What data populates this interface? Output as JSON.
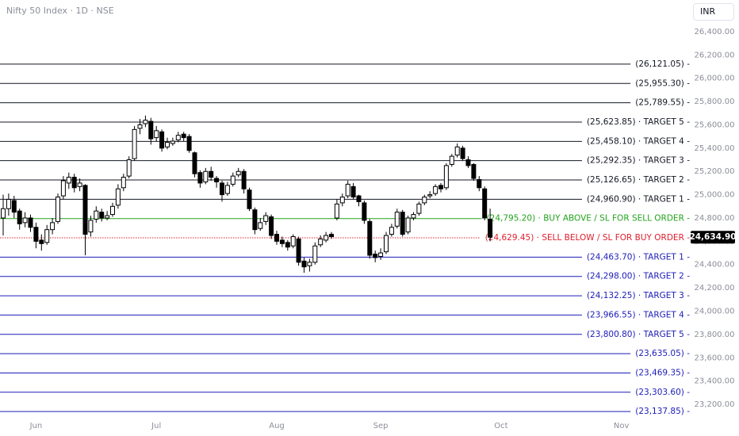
{
  "chart_data": {
    "type": "candlestick",
    "title": "Nifty 50 Index · 1D · NSE",
    "currency": "INR",
    "categories": [
      null,
      null,
      null,
      null,
      null,
      null,
      "Jun",
      null,
      null,
      null,
      null,
      null,
      null,
      null,
      null,
      null,
      null,
      null,
      null,
      null,
      null,
      null,
      null,
      null,
      null,
      null,
      null,
      null,
      "Jul",
      null,
      null,
      null,
      null,
      null,
      null,
      null,
      null,
      null,
      null,
      null,
      null,
      null,
      null,
      null,
      null,
      null,
      null,
      null,
      null,
      null,
      "Aug",
      null,
      null,
      null,
      null,
      null,
      null,
      null,
      null,
      null,
      null,
      null,
      null,
      null,
      null,
      null,
      null,
      null,
      null,
      "Sep",
      null,
      null,
      null,
      null,
      null,
      null,
      null,
      null,
      null,
      null,
      null,
      null,
      null,
      null,
      null,
      null,
      null,
      null,
      null,
      null,
      null,
      "Oct",
      null,
      null,
      null,
      null,
      null,
      null,
      null,
      null,
      null,
      null,
      null,
      null,
      null,
      null,
      null,
      null,
      null,
      null,
      null,
      null,
      null,
      "Nov",
      null
    ],
    "open": [
      24800,
      24880,
      24950,
      24860,
      24760,
      24800,
      24720,
      24610,
      24590,
      24700,
      24770,
      24990,
      25100,
      25150,
      25070,
      25080,
      24680,
      24790,
      24850,
      24800,
      24830,
      24910,
      25060,
      25160,
      25310,
      25570,
      25610,
      25630,
      25490,
      25540,
      25410,
      25440,
      25470,
      25520,
      25500,
      25360,
      25190,
      25110,
      25200,
      25140,
      25100,
      25010,
      25090,
      25170,
      25200,
      25040,
      24870,
      24710,
      24770,
      24810,
      24660,
      24610,
      24590,
      24560,
      24620,
      24430,
      24390,
      24420,
      24570,
      24610,
      24660,
      24800,
      24930,
      24990,
      25070,
      24990,
      24930,
      24770,
      24490,
      24470,
      24510,
      24660,
      24730,
      24850,
      24680,
      24800,
      24840,
      24930,
      24990,
      25010,
      25080,
      25060,
      25260,
      25340,
      25400,
      25300,
      25260,
      25130,
      25050,
      24790,
      null,
      null,
      null,
      null,
      null,
      null,
      null,
      null,
      null,
      null,
      null,
      null,
      null,
      null,
      null,
      null,
      null,
      null,
      null,
      null,
      null,
      null,
      null,
      null,
      null
    ],
    "high": [
      25000,
      25010,
      24990,
      24880,
      24850,
      24830,
      24760,
      24660,
      24740,
      24800,
      25010,
      25160,
      25190,
      25180,
      25140,
      25090,
      24820,
      24900,
      24880,
      24860,
      24930,
      25090,
      25180,
      25330,
      25590,
      25650,
      25680,
      25660,
      25590,
      25560,
      25490,
      25490,
      25540,
      25540,
      25520,
      25370,
      25210,
      25230,
      25240,
      25160,
      25120,
      25110,
      25190,
      25230,
      25220,
      25060,
      24890,
      24800,
      24850,
      24830,
      24690,
      24640,
      24610,
      24660,
      24640,
      24460,
      24450,
      24590,
      24650,
      24680,
      24680,
      24960,
      25010,
      25120,
      25100,
      25000,
      24950,
      24790,
      24520,
      24540,
      24680,
      24750,
      24880,
      24870,
      24820,
      24850,
      24940,
      25000,
      25030,
      25090,
      25100,
      25270,
      25350,
      25440,
      25420,
      25330,
      25270,
      25160,
      25070,
      24880,
      null,
      null,
      null,
      null,
      null,
      null,
      null,
      null,
      null,
      null,
      null,
      null,
      null,
      null,
      null,
      null,
      null,
      null,
      null,
      null,
      null,
      null,
      null,
      null,
      null
    ],
    "low": [
      24650,
      24820,
      24800,
      24700,
      24720,
      24680,
      24540,
      24520,
      24570,
      24660,
      24750,
      24960,
      25050,
      25020,
      25030,
      24480,
      24640,
      24760,
      24770,
      24780,
      24810,
      24880,
      25030,
      25140,
      25290,
      25520,
      25580,
      25430,
      25460,
      25370,
      25390,
      25420,
      25450,
      25460,
      25360,
      25150,
      25060,
      25090,
      25120,
      25060,
      24940,
      24990,
      25070,
      25150,
      25010,
      24860,
      24660,
      24690,
      24740,
      24620,
      24570,
      24550,
      24520,
      24540,
      24390,
      24330,
      24340,
      24400,
      24550,
      24590,
      24620,
      24780,
      24900,
      24970,
      24960,
      24900,
      24750,
      24450,
      24420,
      24440,
      24490,
      24640,
      24710,
      24640,
      24660,
      24780,
      24820,
      24910,
      24970,
      24990,
      25020,
      25040,
      25240,
      25320,
      25290,
      25230,
      25120,
      25030,
      24780,
      24600,
      null,
      null,
      null,
      null,
      null,
      null,
      null,
      null,
      null,
      null,
      null,
      null,
      null,
      null,
      null,
      null,
      null,
      null,
      null,
      null,
      null,
      null,
      null,
      null,
      null
    ],
    "close": [
      24880,
      24960,
      24850,
      24750,
      24800,
      24720,
      24600,
      24580,
      24700,
      24760,
      24980,
      25120,
      25150,
      25060,
      25100,
      24660,
      24780,
      24860,
      24800,
      24820,
      24900,
      25050,
      25150,
      25300,
      25560,
      25600,
      25640,
      25480,
      25550,
      25400,
      25450,
      25460,
      25510,
      25490,
      25380,
      25180,
      25100,
      25200,
      25150,
      25110,
      25000,
      25080,
      25160,
      25200,
      25050,
      24880,
      24700,
      24760,
      24820,
      24650,
      24600,
      24580,
      24550,
      24640,
      24420,
      24380,
      24420,
      24560,
      24620,
      24650,
      24640,
      24920,
      24980,
      25090,
      24980,
      24940,
      24780,
      24480,
      24460,
      24500,
      24650,
      24720,
      24850,
      24660,
      24800,
      24830,
      24920,
      24980,
      25000,
      25070,
      25050,
      25250,
      25330,
      25410,
      25310,
      25250,
      25140,
      25060,
      24800,
      24634.9,
      null,
      null,
      null,
      null,
      null,
      null,
      null,
      null,
      null,
      null,
      null,
      null,
      null,
      null,
      null,
      null,
      null,
      null,
      null,
      null,
      null,
      null,
      null,
      null,
      null
    ],
    "up_color": "#ffffff",
    "down_color": "#000000",
    "border_color": "#000000",
    "ylim": [
      23064,
      26672
    ],
    "yticks": [
      {
        "value": 23200,
        "label": "23,200.00"
      },
      {
        "value": 23400,
        "label": "23,400.00"
      },
      {
        "value": 23600,
        "label": "23,600.00"
      },
      {
        "value": 23800,
        "label": "23,800.00"
      },
      {
        "value": 24000,
        "label": "24,000.00"
      },
      {
        "value": 24200,
        "label": "24,200.00"
      },
      {
        "value": 24400,
        "label": "24,400.00"
      },
      {
        "value": 24600,
        "label": "24,600.00"
      },
      {
        "value": 24800,
        "label": "24,800.00"
      },
      {
        "value": 25000,
        "label": "25,000.00"
      },
      {
        "value": 25200,
        "label": "25,200.00"
      },
      {
        "value": 25400,
        "label": "25,400.00"
      },
      {
        "value": 25600,
        "label": "25,600.00"
      },
      {
        "value": 25800,
        "label": "25,800.00"
      },
      {
        "value": 26000,
        "label": "26,000.00"
      },
      {
        "value": 26200,
        "label": "26,200.00"
      },
      {
        "value": 26400,
        "label": "26,400.00"
      }
    ],
    "last_price": {
      "value": 24634.9,
      "label": "24,634.90"
    },
    "levels": [
      {
        "value": 26121.05,
        "label": "(26,121.05) -",
        "color": "#131722"
      },
      {
        "value": 25955.3,
        "label": "(25,955.30) -",
        "color": "#131722"
      },
      {
        "value": 25789.55,
        "label": "(25,789.55) -",
        "color": "#131722"
      },
      {
        "value": 25623.85,
        "label": "(25,623.85) · TARGET 5 -",
        "color": "#131722"
      },
      {
        "value": 25458.1,
        "label": "(25,458.10) · TARGET 4 -",
        "color": "#131722"
      },
      {
        "value": 25292.35,
        "label": "(25,292.35) · TARGET 3 -",
        "color": "#131722"
      },
      {
        "value": 25126.65,
        "label": "(25,126.65) · TARGET 2 -",
        "color": "#131722"
      },
      {
        "value": 24960.9,
        "label": "(24,960.90) · TARGET 1 -",
        "color": "#131722"
      },
      {
        "value": 24795.2,
        "label": "(24,795.20) · BUY ABOVE / SL FOR SELL ORDER -",
        "color": "#22a31c"
      },
      {
        "value": 24629.45,
        "label": "(24,629.45) · SELL BELOW / SL FOR BUY ORDER -",
        "color": "#e0202e",
        "dashed": true
      },
      {
        "value": 24463.7,
        "label": "(24,463.70) · TARGET 1 -",
        "color": "#1c1cb8"
      },
      {
        "value": 24298.0,
        "label": "(24,298.00) · TARGET 2 -",
        "color": "#1c1cb8"
      },
      {
        "value": 24132.25,
        "label": "(24,132.25) · TARGET 3 -",
        "color": "#1c1cb8"
      },
      {
        "value": 23966.55,
        "label": "(23,966.55) · TARGET 4 -",
        "color": "#1c1cb8"
      },
      {
        "value": 23800.8,
        "label": "(23,800.80) · TARGET 5 -",
        "color": "#1c1cb8"
      },
      {
        "value": 23635.05,
        "label": "(23,635.05) -",
        "color": "#1c1cb8"
      },
      {
        "value": 23469.35,
        "label": "(23,469.35) -",
        "color": "#1c1cb8"
      },
      {
        "value": 23303.6,
        "label": "(23,303.60) -",
        "color": "#1c1cb8"
      },
      {
        "value": 23137.85,
        "label": "(23,137.85) -",
        "color": "#1c1cb8"
      }
    ]
  }
}
